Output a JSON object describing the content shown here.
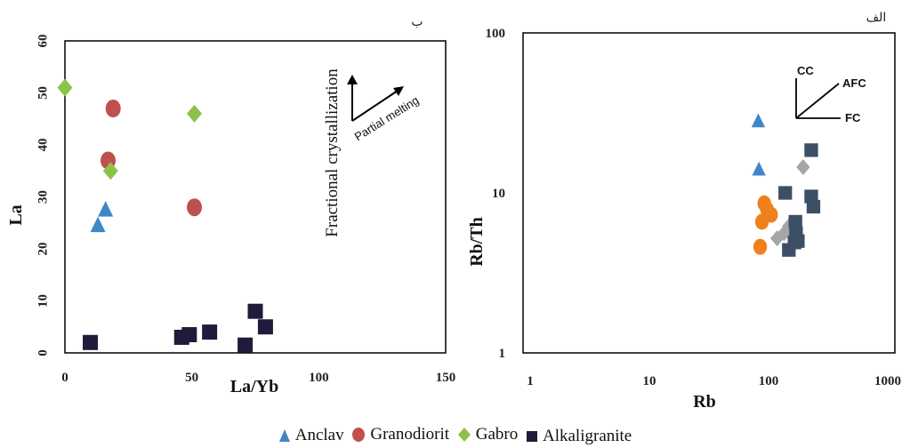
{
  "colors": {
    "anclav": "#3f86c7",
    "granodiorit": "#c0504d",
    "gabro": "#8bc34a",
    "alkaligranite": "#221a3a",
    "orange": "#f07f1e",
    "gray": "#a6a6a6",
    "slate": "#3c4f66"
  },
  "legend": [
    {
      "label": "Anclav",
      "marker": "triangle",
      "color": "#3f86c7"
    },
    {
      "label": "Granodiorit",
      "marker": "ellipse",
      "color": "#c0504d"
    },
    {
      "label": "Gabro",
      "marker": "diamond",
      "color": "#8bc34a"
    },
    {
      "label": "Alkaligranite",
      "marker": "square",
      "color": "#221a3a"
    }
  ],
  "chart_data": [
    {
      "type": "scatter",
      "corner_label": "ب",
      "xlabel": "La/Yb",
      "ylabel": "La",
      "xlim": [
        0,
        150
      ],
      "ylim": [
        0,
        60
      ],
      "xticks": [
        0,
        50,
        100,
        150
      ],
      "yticks": [
        0,
        10,
        20,
        30,
        40,
        50,
        60
      ],
      "grid": false,
      "annotations": {
        "fractional": "Fractional crystallization",
        "partial": "Partial melting"
      },
      "series": [
        {
          "name": "Anclav",
          "marker": "triangle",
          "color": "#3f86c7",
          "points": [
            [
              13,
              24.5
            ],
            [
              16,
              27.5
            ]
          ]
        },
        {
          "name": "Granodiorit",
          "marker": "ellipse",
          "color": "#c0504d",
          "points": [
            [
              19,
              47
            ],
            [
              17,
              37
            ],
            [
              51,
              28
            ]
          ]
        },
        {
          "name": "Gabro",
          "marker": "diamond",
          "color": "#8bc34a",
          "points": [
            [
              0,
              51
            ],
            [
              51,
              46
            ],
            [
              18,
              35
            ]
          ]
        },
        {
          "name": "Alkaligranite",
          "marker": "square",
          "color": "#221a3a",
          "points": [
            [
              10,
              2
            ],
            [
              46,
              3
            ],
            [
              49,
              3.5
            ],
            [
              57,
              4
            ],
            [
              71,
              1.5
            ],
            [
              75,
              8
            ],
            [
              79,
              5
            ]
          ]
        }
      ]
    },
    {
      "type": "scatter",
      "corner_label": "الف",
      "xlabel": "Rb",
      "ylabel": "Rb/Th",
      "xscale": "log",
      "yscale": "log",
      "xlim": [
        1,
        1000
      ],
      "ylim": [
        1,
        100
      ],
      "xticks": [
        1,
        10,
        100,
        1000
      ],
      "yticks": [
        1,
        10,
        100
      ],
      "grid": false,
      "annotations": {
        "cc": "CC",
        "afc": "AFC",
        "fc": "FC"
      },
      "series": [
        {
          "marker": "triangle",
          "color": "#3f86c7",
          "points": [
            [
              82,
              28
            ],
            [
              83,
              14
            ]
          ]
        },
        {
          "marker": "ellipse",
          "color": "#f07f1e",
          "points": [
            [
              92,
              8.6
            ],
            [
              97,
              7.9
            ],
            [
              105,
              7.3
            ],
            [
              88,
              6.6
            ],
            [
              85,
              4.6
            ]
          ]
        },
        {
          "marker": "diamond",
          "color": "#a6a6a6",
          "points": [
            [
              195,
              14.5
            ],
            [
              118,
              5.2
            ],
            [
              135,
              5.6
            ],
            [
              148,
              6.2
            ]
          ]
        },
        {
          "marker": "square",
          "color": "#3c4f66",
          "points": [
            [
              228,
              18.5
            ],
            [
              138,
              10
            ],
            [
              228,
              9.5
            ],
            [
              238,
              8.2
            ],
            [
              168,
              6.6
            ],
            [
              170,
              5.6
            ],
            [
              176,
              5
            ],
            [
              165,
              4.9
            ],
            [
              148,
              4.4
            ]
          ]
        }
      ]
    }
  ]
}
